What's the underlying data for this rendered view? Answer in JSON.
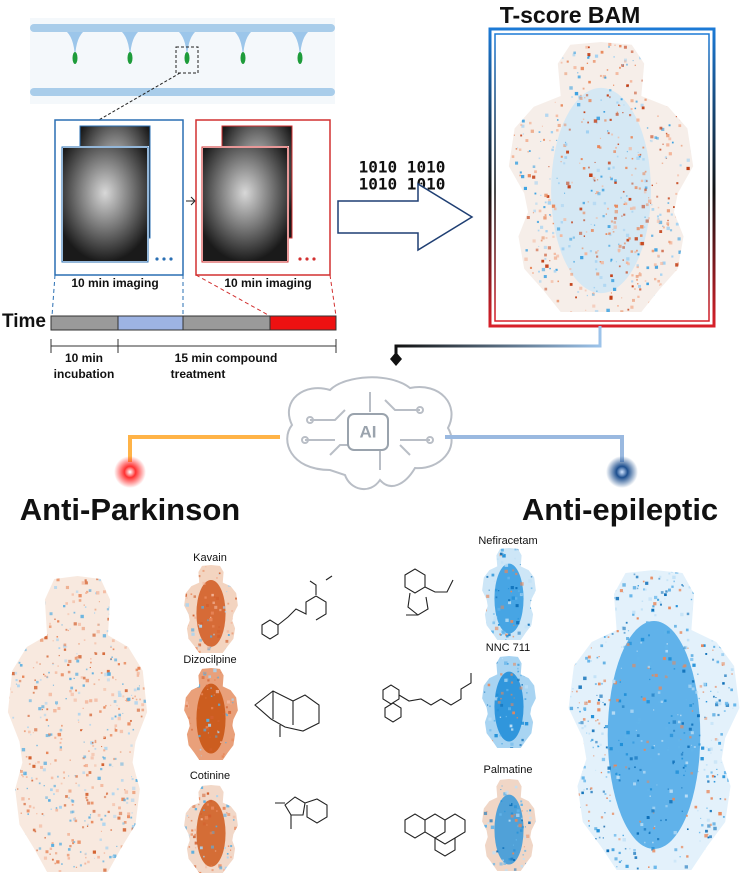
{
  "header": {
    "title": "T-score BAM"
  },
  "binary": [
    "1010 1010",
    "1010 1010"
  ],
  "imaging": {
    "labels": [
      "10 min imaging",
      "10 min imaging"
    ]
  },
  "timeline": {
    "label": "Time",
    "phases": [
      [
        "10 min",
        "incubation"
      ],
      [
        "15 min compound",
        "treatment"
      ]
    ]
  },
  "ai": {
    "label": "AI"
  },
  "groups": [
    {
      "title": "Anti-Parkinson",
      "compounds": [
        "Kavain",
        "Dizocilpine",
        "Cotinine"
      ]
    },
    {
      "title": "Anti-epileptic",
      "compounds": [
        "Nefiracetam",
        "NNC 711",
        "Palmatine"
      ]
    }
  ]
}
